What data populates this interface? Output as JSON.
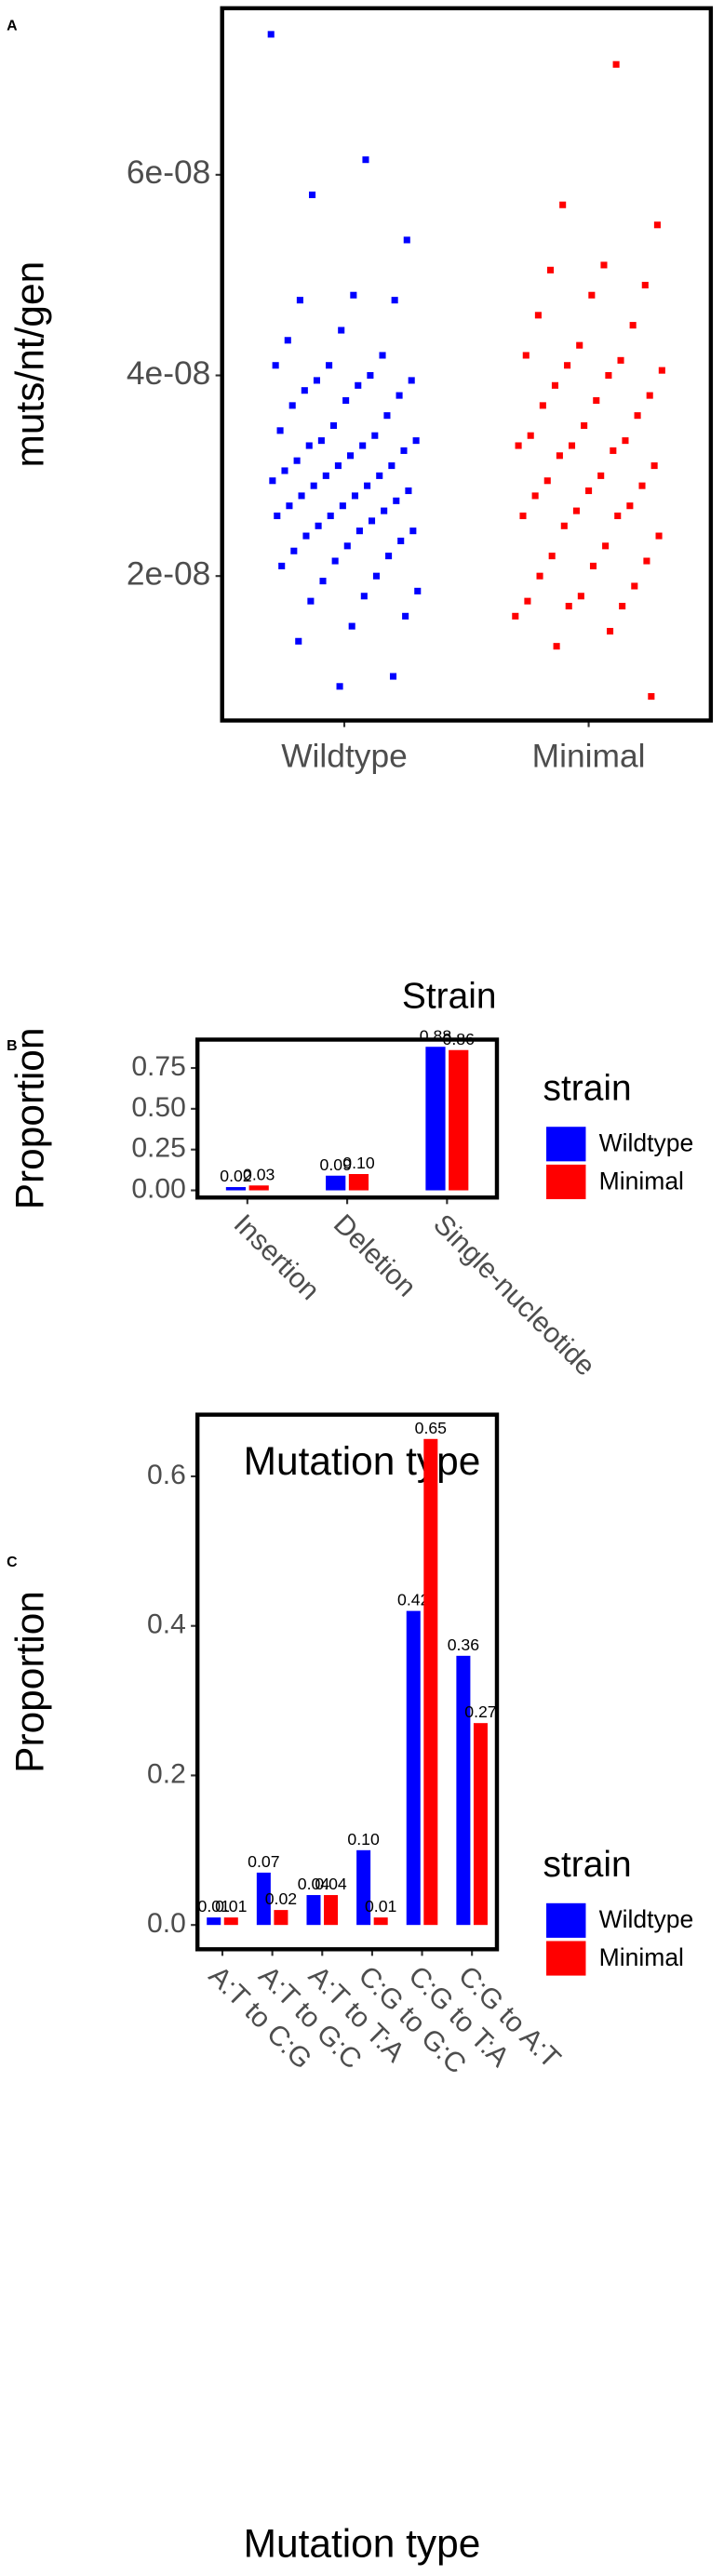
{
  "chart_data": [
    {
      "type": "strip",
      "panel_label": "A",
      "y_label": "muts/nt/gen",
      "categories": [
        "Wildtype",
        "Minimal"
      ],
      "colors": [
        "#0000ff",
        "#ff0000"
      ],
      "values": [
        [
          7.4e-08,
          6.15e-08,
          5.8e-08,
          5.35e-08,
          4.8e-08,
          4.75e-08,
          4.75e-08,
          4.45e-08,
          4.35e-08,
          4.2e-08,
          4.1e-08,
          4.1e-08,
          4e-08,
          3.95e-08,
          3.95e-08,
          3.9e-08,
          3.85e-08,
          3.8e-08,
          3.75e-08,
          3.7e-08,
          3.6e-08,
          3.5e-08,
          3.45e-08,
          3.4e-08,
          3.35e-08,
          3.35e-08,
          3.3e-08,
          3.3e-08,
          3.25e-08,
          3.2e-08,
          3.15e-08,
          3.1e-08,
          3.1e-08,
          3.05e-08,
          3e-08,
          3e-08,
          2.95e-08,
          2.9e-08,
          2.9e-08,
          2.85e-08,
          2.8e-08,
          2.8e-08,
          2.75e-08,
          2.7e-08,
          2.7e-08,
          2.65e-08,
          2.6e-08,
          2.6e-08,
          2.55e-08,
          2.5e-08,
          2.45e-08,
          2.45e-08,
          2.4e-08,
          2.35e-08,
          2.3e-08,
          2.25e-08,
          2.2e-08,
          2.15e-08,
          2.1e-08,
          2e-08,
          1.95e-08,
          1.85e-08,
          1.8e-08,
          1.75e-08,
          1.6e-08,
          1.5e-08,
          1.35e-08,
          1e-08,
          9e-09
        ],
        [
          7.1e-08,
          5.7e-08,
          5.5e-08,
          5.1e-08,
          5.05e-08,
          4.9e-08,
          4.8e-08,
          4.6e-08,
          4.5e-08,
          4.3e-08,
          4.2e-08,
          4.15e-08,
          4.1e-08,
          4.05e-08,
          4e-08,
          3.9e-08,
          3.8e-08,
          3.75e-08,
          3.7e-08,
          3.6e-08,
          3.5e-08,
          3.4e-08,
          3.35e-08,
          3.3e-08,
          3.3e-08,
          3.25e-08,
          3.2e-08,
          3.1e-08,
          3e-08,
          2.95e-08,
          2.9e-08,
          2.85e-08,
          2.8e-08,
          2.7e-08,
          2.65e-08,
          2.6e-08,
          2.6e-08,
          2.5e-08,
          2.4e-08,
          2.3e-08,
          2.2e-08,
          2.15e-08,
          2.1e-08,
          2e-08,
          1.9e-08,
          1.8e-08,
          1.75e-08,
          1.7e-08,
          1.7e-08,
          1.6e-08,
          1.45e-08,
          1.3e-08,
          8e-09
        ]
      ],
      "ylim": [
        5.6e-09,
        7.66e-08
      ],
      "yticks": [
        {
          "value": 2e-08,
          "label": "2e-08"
        },
        {
          "value": 4e-08,
          "label": "4e-08"
        },
        {
          "value": 6e-08,
          "label": "6e-08"
        }
      ]
    },
    {
      "type": "bar",
      "panel_label": "B",
      "title": "Strain",
      "x_label": "Mutation type",
      "y_label": "Proportion",
      "legend_title": "strain",
      "categories": [
        "Insertion",
        "Deletion",
        "Single-nucleotide"
      ],
      "series": [
        {
          "name": "Wildtype",
          "color": "#0000ff",
          "values": [
            0.02,
            0.09,
            0.88
          ],
          "value_labels": [
            "0.02",
            "0.09",
            "0.88"
          ]
        },
        {
          "name": "Minimal",
          "color": "#ff0000",
          "values": [
            0.03,
            0.1,
            0.86
          ],
          "value_labels": [
            "0.03",
            "0.10",
            "0.86"
          ]
        }
      ],
      "ylim": [
        -0.044,
        0.924
      ],
      "yticks": [
        {
          "value": 0,
          "label": "0.00"
        },
        0.25,
        {
          "value": 0.5,
          "label": "0.50"
        },
        0.75
      ]
    },
    {
      "type": "bar",
      "panel_label": "C",
      "x_label": "Mutation type",
      "y_label": "Proportion",
      "legend_title": "strain",
      "categories": [
        "A:T to C:G",
        "A:T to G:C",
        "A:T to T:A",
        "C:G to G:C",
        "C:G to T:A",
        "C:G to A:T"
      ],
      "series": [
        {
          "name": "Wildtype",
          "color": "#0000ff",
          "values": [
            0.01,
            0.07,
            0.04,
            0.1,
            0.42,
            0.36
          ],
          "value_labels": [
            "0.01",
            "0.07",
            "0.04",
            "0.10",
            "0.42",
            "0.36"
          ]
        },
        {
          "name": "Minimal",
          "color": "#ff0000",
          "values": [
            0.01,
            0.02,
            0.04,
            0.01,
            0.65,
            0.27
          ],
          "value_labels": [
            "0.01",
            "0.02",
            "0.04",
            "0.01",
            "0.65",
            "0.27"
          ]
        }
      ],
      "ylim": [
        -0.0325,
        0.6825
      ],
      "yticks": [
        {
          "value": 0,
          "label": "0.0"
        },
        0.2,
        0.4,
        0.6
      ]
    }
  ]
}
